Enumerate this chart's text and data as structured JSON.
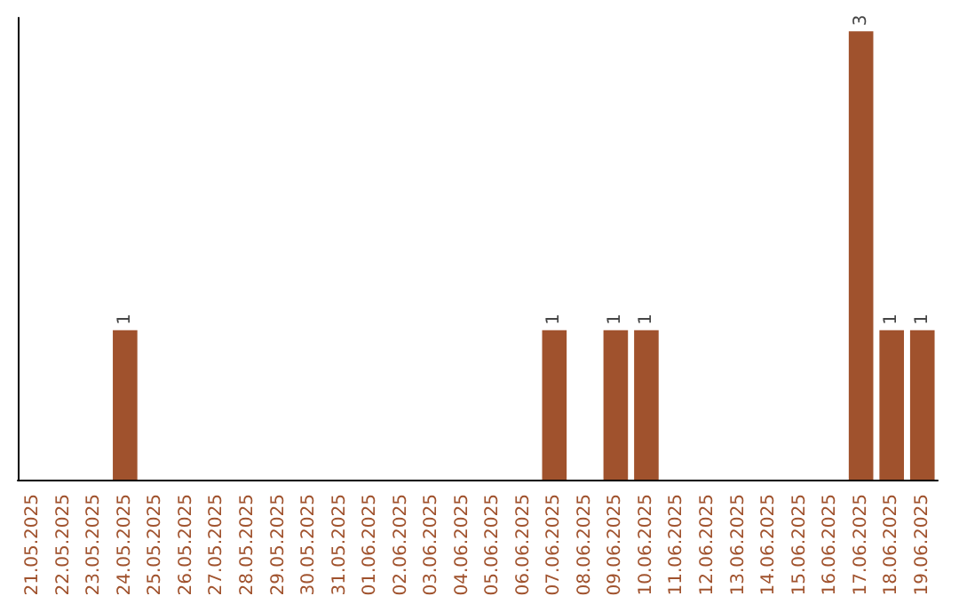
{
  "chart_data": {
    "type": "bar",
    "categories": [
      "21.05.2025",
      "22.05.2025",
      "23.05.2025",
      "24.05.2025",
      "25.05.2025",
      "26.05.2025",
      "27.05.2025",
      "28.05.2025",
      "29.05.2025",
      "30.05.2025",
      "31.05.2025",
      "01.06.2025",
      "02.06.2025",
      "03.06.2025",
      "04.06.2025",
      "05.06.2025",
      "06.06.2025",
      "07.06.2025",
      "08.06.2025",
      "09.06.2025",
      "10.06.2025",
      "11.06.2025",
      "12.06.2025",
      "13.06.2025",
      "14.06.2025",
      "15.06.2025",
      "16.06.2025",
      "17.06.2025",
      "18.06.2025",
      "19.06.2025"
    ],
    "values": [
      0,
      0,
      0,
      1,
      0,
      0,
      0,
      0,
      0,
      0,
      0,
      0,
      0,
      0,
      0,
      0,
      0,
      1,
      0,
      1,
      1,
      0,
      0,
      0,
      0,
      0,
      0,
      3,
      1,
      1
    ],
    "value_labels": [
      null,
      null,
      null,
      "1",
      null,
      null,
      null,
      null,
      null,
      null,
      null,
      null,
      null,
      null,
      null,
      null,
      null,
      "1",
      null,
      "1",
      "1",
      null,
      null,
      null,
      null,
      null,
      null,
      "3",
      "1",
      "1"
    ],
    "color": "#a0522d"
  }
}
